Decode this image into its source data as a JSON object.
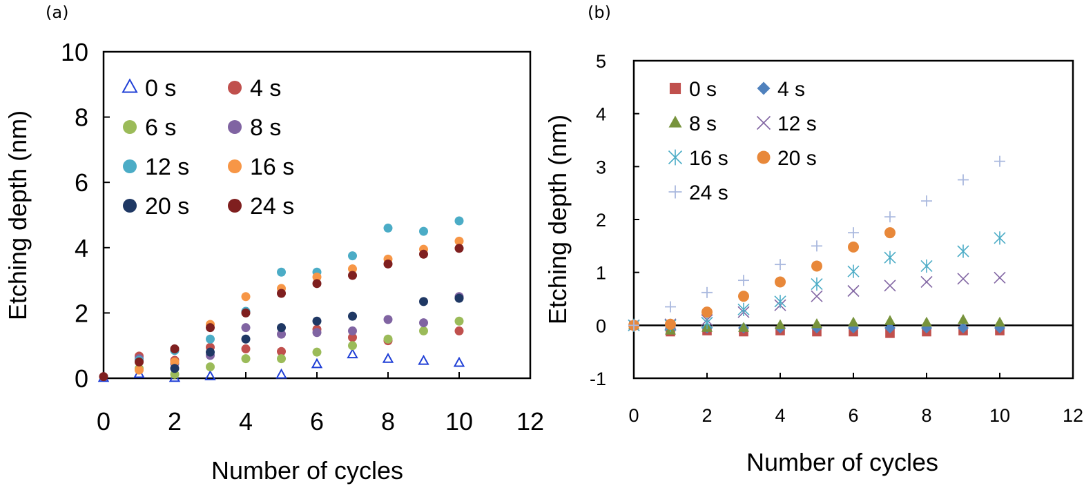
{
  "chart_data": [
    {
      "type": "scatter",
      "panel_label": "(a)",
      "xlabel": "Number of cycles",
      "ylabel": "Etching depth (nm)",
      "xlim": [
        0,
        12
      ],
      "ylim": [
        0,
        10
      ],
      "xticks": [
        "0",
        "2",
        "4",
        "6",
        "8",
        "10",
        "12"
      ],
      "yticks": [
        "0",
        "2",
        "4",
        "6",
        "8",
        "10"
      ],
      "legend_position": "top-left",
      "series": [
        {
          "name": "0 s",
          "marker": "triangle-open",
          "color": "#1f3fd6",
          "points": [
            [
              0,
              0.0
            ],
            [
              1,
              0.12
            ],
            [
              2,
              0.0
            ],
            [
              3,
              0.05
            ],
            [
              5,
              0.1
            ],
            [
              6,
              0.42
            ],
            [
              7,
              0.72
            ],
            [
              8,
              0.58
            ],
            [
              9,
              0.52
            ],
            [
              10,
              0.46
            ]
          ]
        },
        {
          "name": "4 s",
          "marker": "circle",
          "color": "#c0504d",
          "points": [
            [
              1,
              0.68
            ],
            [
              2,
              0.55
            ],
            [
              3,
              0.95
            ],
            [
              4,
              0.9
            ],
            [
              5,
              0.82
            ],
            [
              6,
              1.5
            ],
            [
              7,
              1.25
            ],
            [
              8,
              1.15
            ],
            [
              10,
              1.45
            ]
          ]
        },
        {
          "name": "6 s",
          "marker": "circle",
          "color": "#9bbb59",
          "points": [
            [
              1,
              0.3
            ],
            [
              2,
              0.12
            ],
            [
              3,
              0.35
            ],
            [
              4,
              0.6
            ],
            [
              5,
              0.6
            ],
            [
              6,
              0.8
            ],
            [
              7,
              1.0
            ],
            [
              8,
              1.2
            ],
            [
              9,
              1.45
            ],
            [
              10,
              1.75
            ]
          ]
        },
        {
          "name": "8 s",
          "marker": "circle",
          "color": "#8064a2",
          "points": [
            [
              1,
              0.6
            ],
            [
              2,
              0.45
            ],
            [
              3,
              0.7
            ],
            [
              4,
              1.55
            ],
            [
              5,
              1.35
            ],
            [
              6,
              1.4
            ],
            [
              7,
              1.45
            ],
            [
              8,
              1.8
            ],
            [
              9,
              1.7
            ],
            [
              10,
              2.5
            ]
          ]
        },
        {
          "name": "12 s",
          "marker": "circle",
          "color": "#4bacc6",
          "points": [
            [
              1,
              0.55
            ],
            [
              2,
              0.85
            ],
            [
              3,
              1.2
            ],
            [
              4,
              2.05
            ],
            [
              5,
              3.25
            ],
            [
              6,
              3.25
            ],
            [
              7,
              3.75
            ],
            [
              8,
              4.6
            ],
            [
              9,
              4.5
            ],
            [
              10,
              4.82
            ]
          ]
        },
        {
          "name": "16 s",
          "marker": "circle",
          "color": "#f79646",
          "points": [
            [
              1,
              0.25
            ],
            [
              2,
              0.5
            ],
            [
              3,
              1.65
            ],
            [
              4,
              2.5
            ],
            [
              5,
              2.75
            ],
            [
              6,
              3.1
            ],
            [
              7,
              3.35
            ],
            [
              8,
              3.65
            ],
            [
              9,
              3.95
            ],
            [
              10,
              4.2
            ]
          ]
        },
        {
          "name": "20 s",
          "marker": "circle",
          "color": "#1f3864",
          "points": [
            [
              2,
              0.3
            ],
            [
              3,
              0.8
            ],
            [
              4,
              1.2
            ],
            [
              5,
              1.55
            ],
            [
              6,
              1.75
            ],
            [
              7,
              1.9
            ],
            [
              9,
              2.35
            ],
            [
              10,
              2.45
            ]
          ]
        },
        {
          "name": "24 s",
          "marker": "circle",
          "color": "#7f1f1f",
          "points": [
            [
              0,
              0.05
            ],
            [
              1,
              0.5
            ],
            [
              2,
              0.9
            ],
            [
              3,
              1.55
            ],
            [
              4,
              2.0
            ],
            [
              5,
              2.6
            ],
            [
              6,
              2.9
            ],
            [
              7,
              3.15
            ],
            [
              8,
              3.5
            ],
            [
              9,
              3.8
            ],
            [
              10,
              3.98
            ]
          ]
        }
      ]
    },
    {
      "type": "scatter",
      "panel_label": "(b)",
      "xlabel": "Number of cycles",
      "ylabel": "Etching depth (nm)",
      "xlim": [
        0,
        12
      ],
      "ylim": [
        -1,
        5
      ],
      "xticks": [
        "0",
        "2",
        "4",
        "6",
        "8",
        "10",
        "12"
      ],
      "yticks": [
        "-1",
        "0",
        "1",
        "2",
        "3",
        "4",
        "5"
      ],
      "legend_position": "top-left",
      "series": [
        {
          "name": "0 s",
          "marker": "square",
          "color": "#c0504d",
          "points": [
            [
              0,
              0.0
            ],
            [
              1,
              -0.12
            ],
            [
              2,
              -0.1
            ],
            [
              3,
              -0.12
            ],
            [
              4,
              -0.1
            ],
            [
              5,
              -0.12
            ],
            [
              6,
              -0.12
            ],
            [
              7,
              -0.15
            ],
            [
              8,
              -0.12
            ],
            [
              9,
              -0.1
            ],
            [
              10,
              -0.1
            ]
          ]
        },
        {
          "name": "4 s",
          "marker": "diamond",
          "color": "#4f81bd",
          "points": [
            [
              0,
              0.0
            ],
            [
              1,
              -0.05
            ],
            [
              2,
              -0.05
            ],
            [
              3,
              -0.05
            ],
            [
              4,
              -0.05
            ],
            [
              5,
              -0.05
            ],
            [
              6,
              -0.05
            ],
            [
              7,
              -0.05
            ],
            [
              8,
              -0.05
            ],
            [
              9,
              -0.05
            ],
            [
              10,
              -0.05
            ]
          ]
        },
        {
          "name": "8 s",
          "marker": "triangle",
          "color": "#77933c",
          "points": [
            [
              0,
              0.0
            ],
            [
              1,
              -0.1
            ],
            [
              2,
              -0.05
            ],
            [
              3,
              -0.05
            ],
            [
              4,
              0.0
            ],
            [
              5,
              0.02
            ],
            [
              6,
              0.05
            ],
            [
              7,
              0.08
            ],
            [
              8,
              0.05
            ],
            [
              9,
              0.1
            ],
            [
              10,
              0.05
            ]
          ]
        },
        {
          "name": "12 s",
          "marker": "x",
          "color": "#8064a2",
          "points": [
            [
              0,
              0.0
            ],
            [
              1,
              0.02
            ],
            [
              2,
              0.1
            ],
            [
              3,
              0.25
            ],
            [
              4,
              0.38
            ],
            [
              5,
              0.55
            ],
            [
              6,
              0.65
            ],
            [
              7,
              0.75
            ],
            [
              8,
              0.82
            ],
            [
              9,
              0.88
            ],
            [
              10,
              0.9
            ]
          ]
        },
        {
          "name": "16 s",
          "marker": "asterisk",
          "color": "#4bacc6",
          "points": [
            [
              0,
              0.0
            ],
            [
              1,
              0.0
            ],
            [
              2,
              0.05
            ],
            [
              3,
              0.3
            ],
            [
              4,
              0.45
            ],
            [
              5,
              0.78
            ],
            [
              6,
              1.02
            ],
            [
              7,
              1.28
            ],
            [
              8,
              1.12
            ],
            [
              9,
              1.4
            ],
            [
              10,
              1.65
            ]
          ]
        },
        {
          "name": "20 s",
          "marker": "circle",
          "color": "#e8883a",
          "points": [
            [
              0,
              0.0
            ],
            [
              1,
              0.02
            ],
            [
              2,
              0.25
            ],
            [
              3,
              0.55
            ],
            [
              4,
              0.82
            ],
            [
              5,
              1.12
            ],
            [
              6,
              1.48
            ],
            [
              7,
              1.75
            ]
          ]
        },
        {
          "name": "24 s",
          "marker": "plus",
          "color": "#a9b8de",
          "points": [
            [
              0,
              0.0
            ],
            [
              1,
              0.35
            ],
            [
              2,
              0.62
            ],
            [
              3,
              0.85
            ],
            [
              4,
              1.15
            ],
            [
              5,
              1.5
            ],
            [
              6,
              1.75
            ],
            [
              7,
              2.05
            ],
            [
              8,
              2.35
            ],
            [
              9,
              2.75
            ],
            [
              10,
              3.1
            ]
          ]
        }
      ]
    }
  ]
}
